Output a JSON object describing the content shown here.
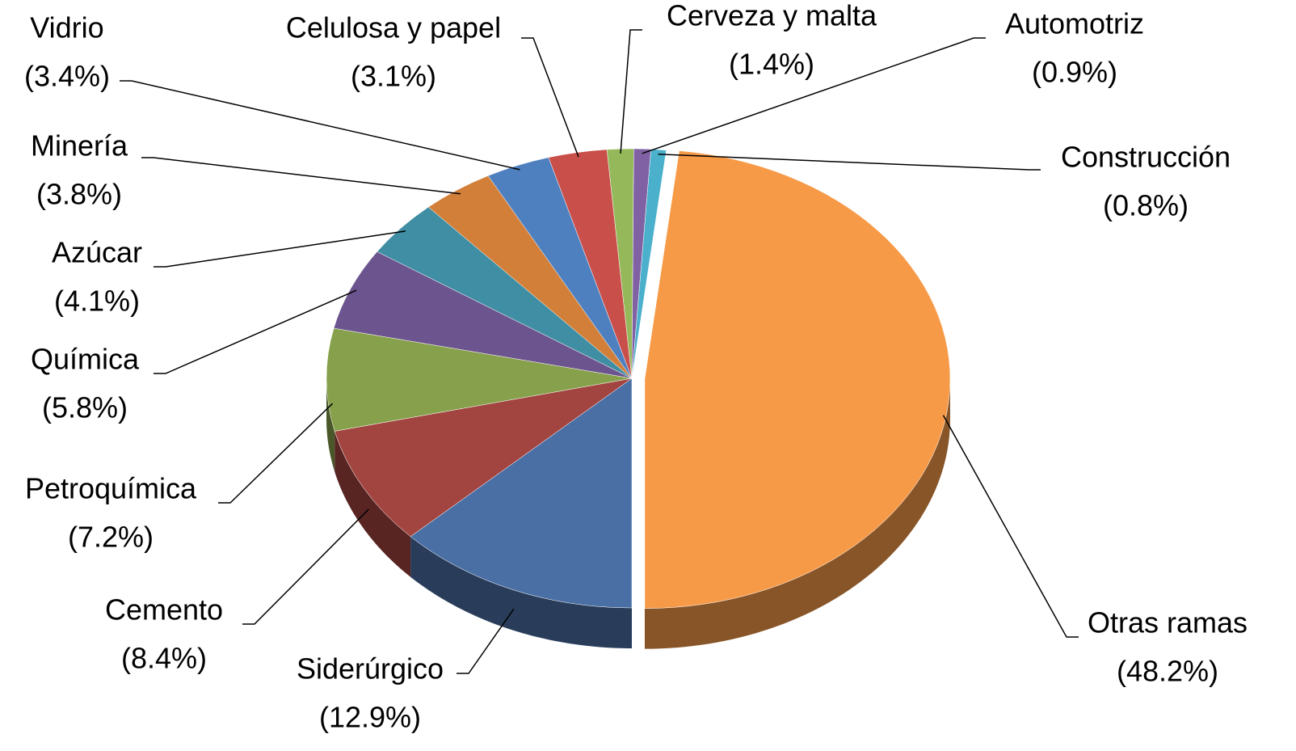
{
  "chart_data": {
    "type": "pie",
    "categories": [
      "Siderúrgico",
      "Cemento",
      "Petroquímica",
      "Química",
      "Azúcar",
      "Minería",
      "Vidrio",
      "Celulosa y papel",
      "Cerveza y malta",
      "Automotriz",
      "Construcción",
      "Otras ramas"
    ],
    "values": [
      12.9,
      8.4,
      7.2,
      5.8,
      4.1,
      3.8,
      3.4,
      3.1,
      1.4,
      0.9,
      0.8,
      48.2
    ],
    "value_labels": [
      "(12.9%)",
      "(8.4%)",
      "(7.2%)",
      "(5.8%)",
      "(4.1%)",
      "(3.8%)",
      "(3.4%)",
      "(3.1%)",
      "(1.4%)",
      "(0.9%)",
      "(0.8%)",
      "(48.2%)"
    ],
    "colors": [
      "#4a6fa5",
      "#a2443f",
      "#86a04b",
      "#6c558e",
      "#3f8ea3",
      "#d27f39",
      "#4e80c0",
      "#c94f4b",
      "#95b95a",
      "#8062a4",
      "#4bb0cc",
      "#f79a48"
    ]
  }
}
